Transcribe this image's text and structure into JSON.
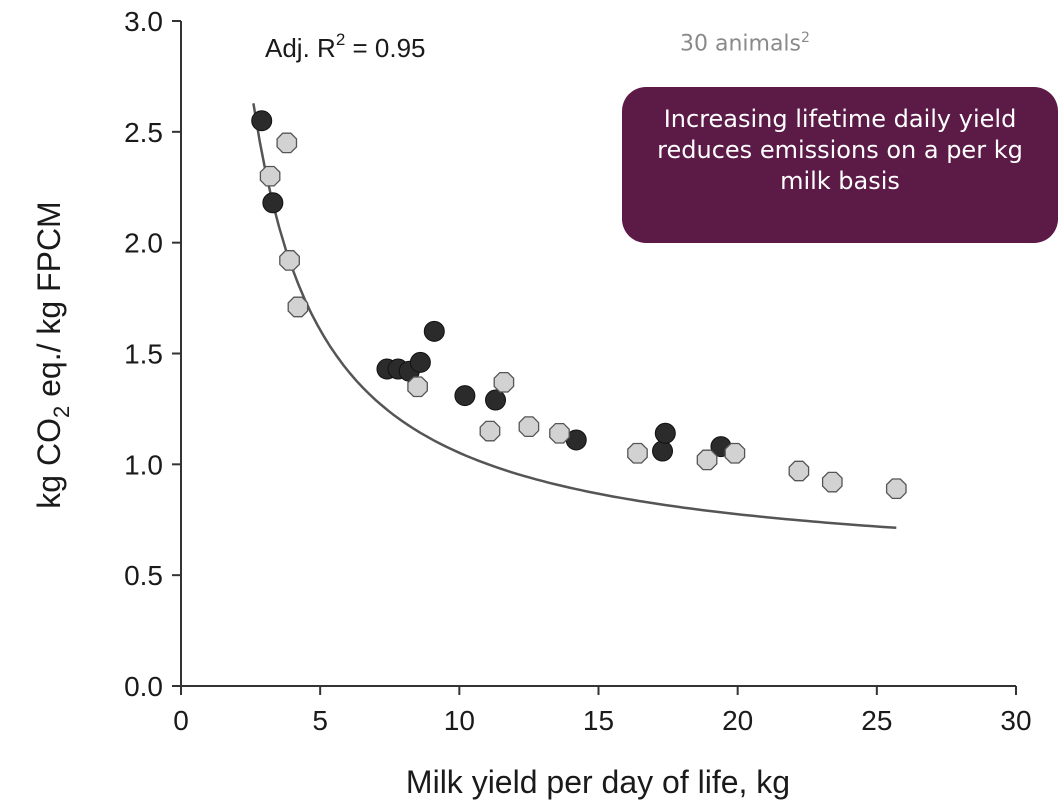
{
  "chart_data": {
    "type": "scatter",
    "title": "",
    "xlabel": "Milk yield per day of life, kg",
    "ylabel": "kg CO2 eq./ kg FPCM",
    "ylabel_parts": {
      "pre": "kg CO",
      "sub": "2",
      "post": " eq./ kg FPCM"
    },
    "xlim": [
      0,
      30
    ],
    "ylim": [
      0,
      3.0
    ],
    "x_ticks": [
      "0",
      "5",
      "10",
      "15",
      "20",
      "25",
      "30"
    ],
    "y_ticks": [
      "0.0",
      "0.5",
      "1.0",
      "1.5",
      "2.0",
      "2.5",
      "3.0"
    ],
    "grid": false,
    "annotation": {
      "pre": "Adj. R",
      "sup": "2",
      "post": " = 0.95"
    },
    "series": [
      {
        "color": "#2b2b2b",
        "marker": "circle",
        "points": [
          [
            2.9,
            2.55
          ],
          [
            3.3,
            2.18
          ],
          [
            7.4,
            1.43
          ],
          [
            7.8,
            1.43
          ],
          [
            8.2,
            1.42
          ],
          [
            8.6,
            1.46
          ],
          [
            9.1,
            1.6
          ],
          [
            10.2,
            1.31
          ],
          [
            11.3,
            1.29
          ],
          [
            14.2,
            1.11
          ],
          [
            17.3,
            1.06
          ],
          [
            17.4,
            1.14
          ],
          [
            19.4,
            1.08
          ]
        ]
      },
      {
        "color": "#d2d2d2",
        "marker": "octagon",
        "points": [
          [
            3.2,
            2.3
          ],
          [
            3.8,
            2.45
          ],
          [
            3.9,
            1.92
          ],
          [
            4.2,
            1.71
          ],
          [
            8.5,
            1.35
          ],
          [
            11.1,
            1.15
          ],
          [
            11.6,
            1.37
          ],
          [
            12.5,
            1.17
          ],
          [
            13.6,
            1.14
          ],
          [
            16.4,
            1.05
          ],
          [
            18.9,
            1.02
          ],
          [
            19.9,
            1.05
          ],
          [
            22.2,
            0.97
          ],
          [
            23.4,
            0.92
          ],
          [
            25.7,
            0.89
          ]
        ]
      }
    ],
    "fit_curve": {
      "type": "trend",
      "x_range": [
        2.6,
        25.7
      ],
      "a": 0.498,
      "b": 5.54
    }
  },
  "note": {
    "text": "30 animals",
    "sup": "2"
  },
  "callout": {
    "text": "Increasing lifetime daily yield reduces emissions on a per kg milk basis"
  }
}
